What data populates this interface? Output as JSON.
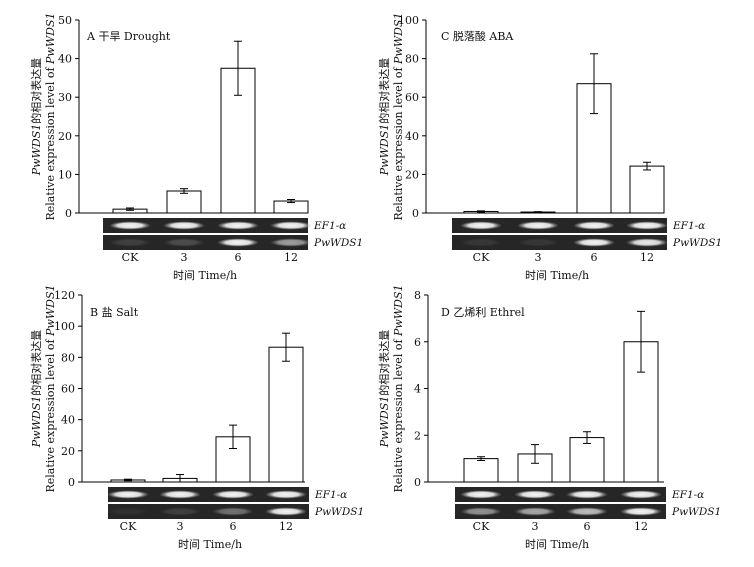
{
  "figure": {
    "shared": {
      "ylabel_line1_prefix": "PwWDS1",
      "ylabel_line1_suffix": "的相对表达量",
      "ylabel_line2": "Relative expression level of PwWDS1",
      "xlabel": "时间 Time/h",
      "gel_labels": [
        "EF1-α",
        "PwWDS1"
      ]
    }
  },
  "chart_data": [
    {
      "id": "A",
      "type": "bar",
      "title": "A 干旱 Drought",
      "categories": [
        "CK",
        "3",
        "6",
        "12"
      ],
      "values": [
        1.0,
        5.7,
        37.5,
        3.1
      ],
      "errors": [
        0.3,
        0.6,
        7.0,
        0.4
      ],
      "ylim": [
        0,
        50
      ],
      "yticks": [
        "0",
        "10",
        "20",
        "30",
        "40",
        "50"
      ],
      "gel": {
        "ef1": [
          0.95,
          0.95,
          0.95,
          0.95
        ],
        "wds1": [
          0.12,
          0.18,
          0.95,
          0.55
        ]
      }
    },
    {
      "id": "C",
      "type": "bar",
      "title": "C 脱落酸 ABA",
      "categories": [
        "CK",
        "3",
        "6",
        "12"
      ],
      "values": [
        0.8,
        0.5,
        67.0,
        24.3
      ],
      "errors": [
        0.3,
        0.2,
        15.5,
        2.0
      ],
      "ylim": [
        0,
        100
      ],
      "yticks": [
        "0",
        "20",
        "40",
        "60",
        "80",
        "100"
      ],
      "gel": {
        "ef1": [
          0.95,
          0.95,
          0.95,
          0.95
        ],
        "wds1": [
          0.08,
          0.08,
          0.95,
          0.9
        ]
      }
    },
    {
      "id": "B",
      "type": "bar",
      "title": "B 盐 Salt",
      "categories": [
        "CK",
        "3",
        "6",
        "12"
      ],
      "values": [
        1.3,
        2.3,
        29.0,
        86.5
      ],
      "errors": [
        0.5,
        2.5,
        7.5,
        9.0
      ],
      "ylim": [
        0,
        120
      ],
      "yticks": [
        "0",
        "20",
        "40",
        "60",
        "80",
        "100",
        "120"
      ],
      "gel": {
        "ef1": [
          0.95,
          0.95,
          0.95,
          0.95
        ],
        "wds1": [
          0.05,
          0.12,
          0.35,
          0.95
        ]
      }
    },
    {
      "id": "D",
      "type": "bar",
      "title": "D 乙烯利 Ethrel",
      "categories": [
        "CK",
        "3",
        "6",
        "12"
      ],
      "values": [
        1.0,
        1.2,
        1.9,
        6.0
      ],
      "errors": [
        0.08,
        0.4,
        0.25,
        1.3
      ],
      "ylim": [
        0,
        8
      ],
      "yticks": [
        "0",
        "2",
        "4",
        "6",
        "8"
      ],
      "gel": {
        "ef1": [
          0.95,
          0.95,
          0.95,
          0.95
        ],
        "wds1": [
          0.5,
          0.6,
          0.7,
          0.95
        ]
      }
    }
  ]
}
